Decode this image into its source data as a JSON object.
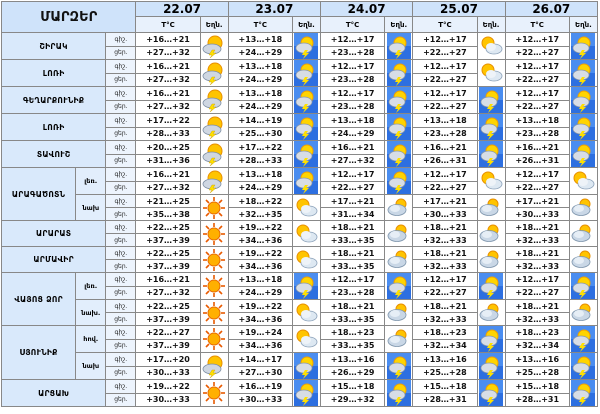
{
  "header": {
    "title": "ՄԱՐԶԵՐ",
    "temp_label": "T°C",
    "weather_label": "Եղն.",
    "dates": [
      "22.07",
      "23.07",
      "24.07",
      "25.07",
      "26.07"
    ]
  },
  "time_labels": {
    "day": "ցեր.",
    "night": "գիշ."
  },
  "regions": [
    {
      "name": "ՇԻՐԱԿ",
      "rows": [
        {
          "night": [
            "+16…+21",
            "+13…+18",
            "+12…+17",
            "+12…+17",
            "+12…+17"
          ],
          "day": [
            "+27…+32",
            "+24…+29",
            "+23…+28",
            "+22…+27",
            "+22…+27"
          ],
          "icons": [
            "sun-cloud-storm",
            "cloud-storm",
            "cloud-storm",
            "sun-cloud",
            "cloud-storm"
          ]
        }
      ]
    },
    {
      "name": "ԼՈՌԻ",
      "rows": [
        {
          "night": [
            "+16…+21",
            "+13…+18",
            "+12…+17",
            "+12…+17",
            "+12…+17"
          ],
          "day": [
            "+27…+32",
            "+24…+29",
            "+23…+28",
            "+22…+27",
            "+22…+27"
          ],
          "icons": [
            "sun-cloud-storm",
            "cloud-storm",
            "cloud-storm",
            "sun-cloud",
            "cloud-storm"
          ]
        }
      ]
    },
    {
      "name": "ԳԵՂԱՐՔՈՒՆԻՔ",
      "rows": [
        {
          "night": [
            "+16…+21",
            "+13…+18",
            "+12…+17",
            "+12…+17",
            "+12…+17"
          ],
          "day": [
            "+27…+32",
            "+24…+29",
            "+23…+28",
            "+22…+27",
            "+22…+27"
          ],
          "icons": [
            "sun-cloud-storm",
            "cloud-storm",
            "cloud-storm",
            "cloud-storm",
            "cloud-storm"
          ]
        }
      ]
    },
    {
      "name": "ԼՈՌԻ",
      "rows": [
        {
          "night": [
            "+17…+22",
            "+14…+19",
            "+13…+18",
            "+13…+18",
            "+13…+18"
          ],
          "day": [
            "+28…+33",
            "+25…+30",
            "+24…+29",
            "+23…+28",
            "+23…+28"
          ],
          "icons": [
            "sun-cloud-storm",
            "cloud-storm",
            "cloud-storm",
            "cloud-storm",
            "cloud-storm"
          ]
        }
      ]
    },
    {
      "name": "ՏԱՎՈՒՇ",
      "rows": [
        {
          "night": [
            "+20…+25",
            "+17…+22",
            "+16…+21",
            "+16…+21",
            "+16…+21"
          ],
          "day": [
            "+31…+36",
            "+28…+33",
            "+27…+32",
            "+26…+31",
            "+26…+31"
          ],
          "icons": [
            "sun-cloud-storm",
            "cloud-storm",
            "cloud-storm",
            "cloud-storm",
            "cloud-storm"
          ]
        }
      ]
    },
    {
      "name": "ԱՐԱԳԱԾՈՏՆ",
      "rows": [
        {
          "sub": "լեռ.",
          "night": [
            "+16…+21",
            "+13…+18",
            "+12…+17",
            "+12…+17",
            "+12…+17"
          ],
          "day": [
            "+27…+32",
            "+24…+29",
            "+22…+27",
            "+22…+27",
            "+22…+27"
          ],
          "icons": [
            "sun-cloud-storm",
            "cloud-storm",
            "cloud-storm",
            "sun-cloud",
            "sun-cloud"
          ]
        },
        {
          "sub": "նախ",
          "night": [
            "+21…+25",
            "+18…+22",
            "+17…+21",
            "+17…+21",
            "+17…+21"
          ],
          "day": [
            "+35…+38",
            "+32…+35",
            "+31…+34",
            "+30…+33",
            "+30…+33"
          ],
          "icons": [
            "sun",
            "sun-cloud",
            "cloud-sun",
            "cloud-sun",
            "cloud-sun"
          ]
        }
      ]
    },
    {
      "name": "ԱՐԱՐԱՏ",
      "rows": [
        {
          "night": [
            "+22…+25",
            "+19…+22",
            "+18…+21",
            "+18…+21",
            "+18…+21"
          ],
          "day": [
            "+37…+39",
            "+34…+36",
            "+33…+35",
            "+32…+33",
            "+32…+33"
          ],
          "icons": [
            "sun",
            "sun-cloud",
            "cloud-sun",
            "cloud-sun",
            "cloud-sun"
          ]
        }
      ]
    },
    {
      "name": "ԱՐՄԱՎԻՐ",
      "rows": [
        {
          "night": [
            "+22…+25",
            "+19…+22",
            "+18…+21",
            "+18…+21",
            "+18…+21"
          ],
          "day": [
            "+37…+39",
            "+34…+36",
            "+33…+35",
            "+32…+33",
            "+32…+33"
          ],
          "icons": [
            "sun",
            "sun-cloud",
            "cloud-sun",
            "cloud-sun",
            "cloud-sun"
          ]
        }
      ]
    },
    {
      "name": "ՎԱՅՈՑ ՁՈՐ",
      "rows": [
        {
          "sub": "լեռ.",
          "night": [
            "+16…+21",
            "+13…+18",
            "+12…+17",
            "+12…+17",
            "+12…+17"
          ],
          "day": [
            "+27…+32",
            "+24…+29",
            "+23…+28",
            "+22…+27",
            "+22…+27"
          ],
          "icons": [
            "sun",
            "cloud-storm",
            "cloud-storm",
            "cloud-storm",
            "cloud-storm"
          ]
        },
        {
          "sub": "նախ.",
          "night": [
            "+22…+25",
            "+19…+22",
            "+18…+21",
            "+18…+21",
            "+18…+21"
          ],
          "day": [
            "+37…+39",
            "+34…+36",
            "+33…+35",
            "+32…+33",
            "+32…+33"
          ],
          "icons": [
            "sun",
            "sun-cloud",
            "cloud-sun",
            "cloud-sun",
            "cloud-sun"
          ]
        }
      ]
    },
    {
      "name": "ՍՅՈՒՆԻՔ",
      "rows": [
        {
          "sub": "հով.",
          "night": [
            "+22…+27",
            "+19…+24",
            "+18…+23",
            "+18…+23",
            "+18…+23"
          ],
          "day": [
            "+37…+39",
            "+34…+36",
            "+33…+35",
            "+32…+34",
            "+32…+34"
          ],
          "icons": [
            "sun",
            "sun-cloud",
            "cloud-sun",
            "cloud-storm",
            "cloud-storm"
          ]
        },
        {
          "sub": "նախ",
          "night": [
            "+17…+20",
            "+14…+17",
            "+13…+16",
            "+13…+16",
            "+13…+16"
          ],
          "day": [
            "+30…+33",
            "+27…+30",
            "+26…+29",
            "+25…+28",
            "+25…+28"
          ],
          "icons": [
            "sun-cloud-storm",
            "cloud-storm",
            "cloud-storm",
            "cloud-storm",
            "cloud-storm"
          ]
        }
      ]
    },
    {
      "name": "ԱՐՑԱԽ",
      "rows": [
        {
          "night": [
            "+19…+22",
            "+16…+19",
            "+15…+18",
            "+15…+18",
            "+15…+18"
          ],
          "day": [
            "+30…+33",
            "+30…+33",
            "+29…+32",
            "+28…+31",
            "+28…+31"
          ],
          "icons": [
            "sun",
            "cloud-storm",
            "cloud-storm",
            "cloud-storm",
            "cloud-storm"
          ]
        }
      ]
    }
  ]
}
